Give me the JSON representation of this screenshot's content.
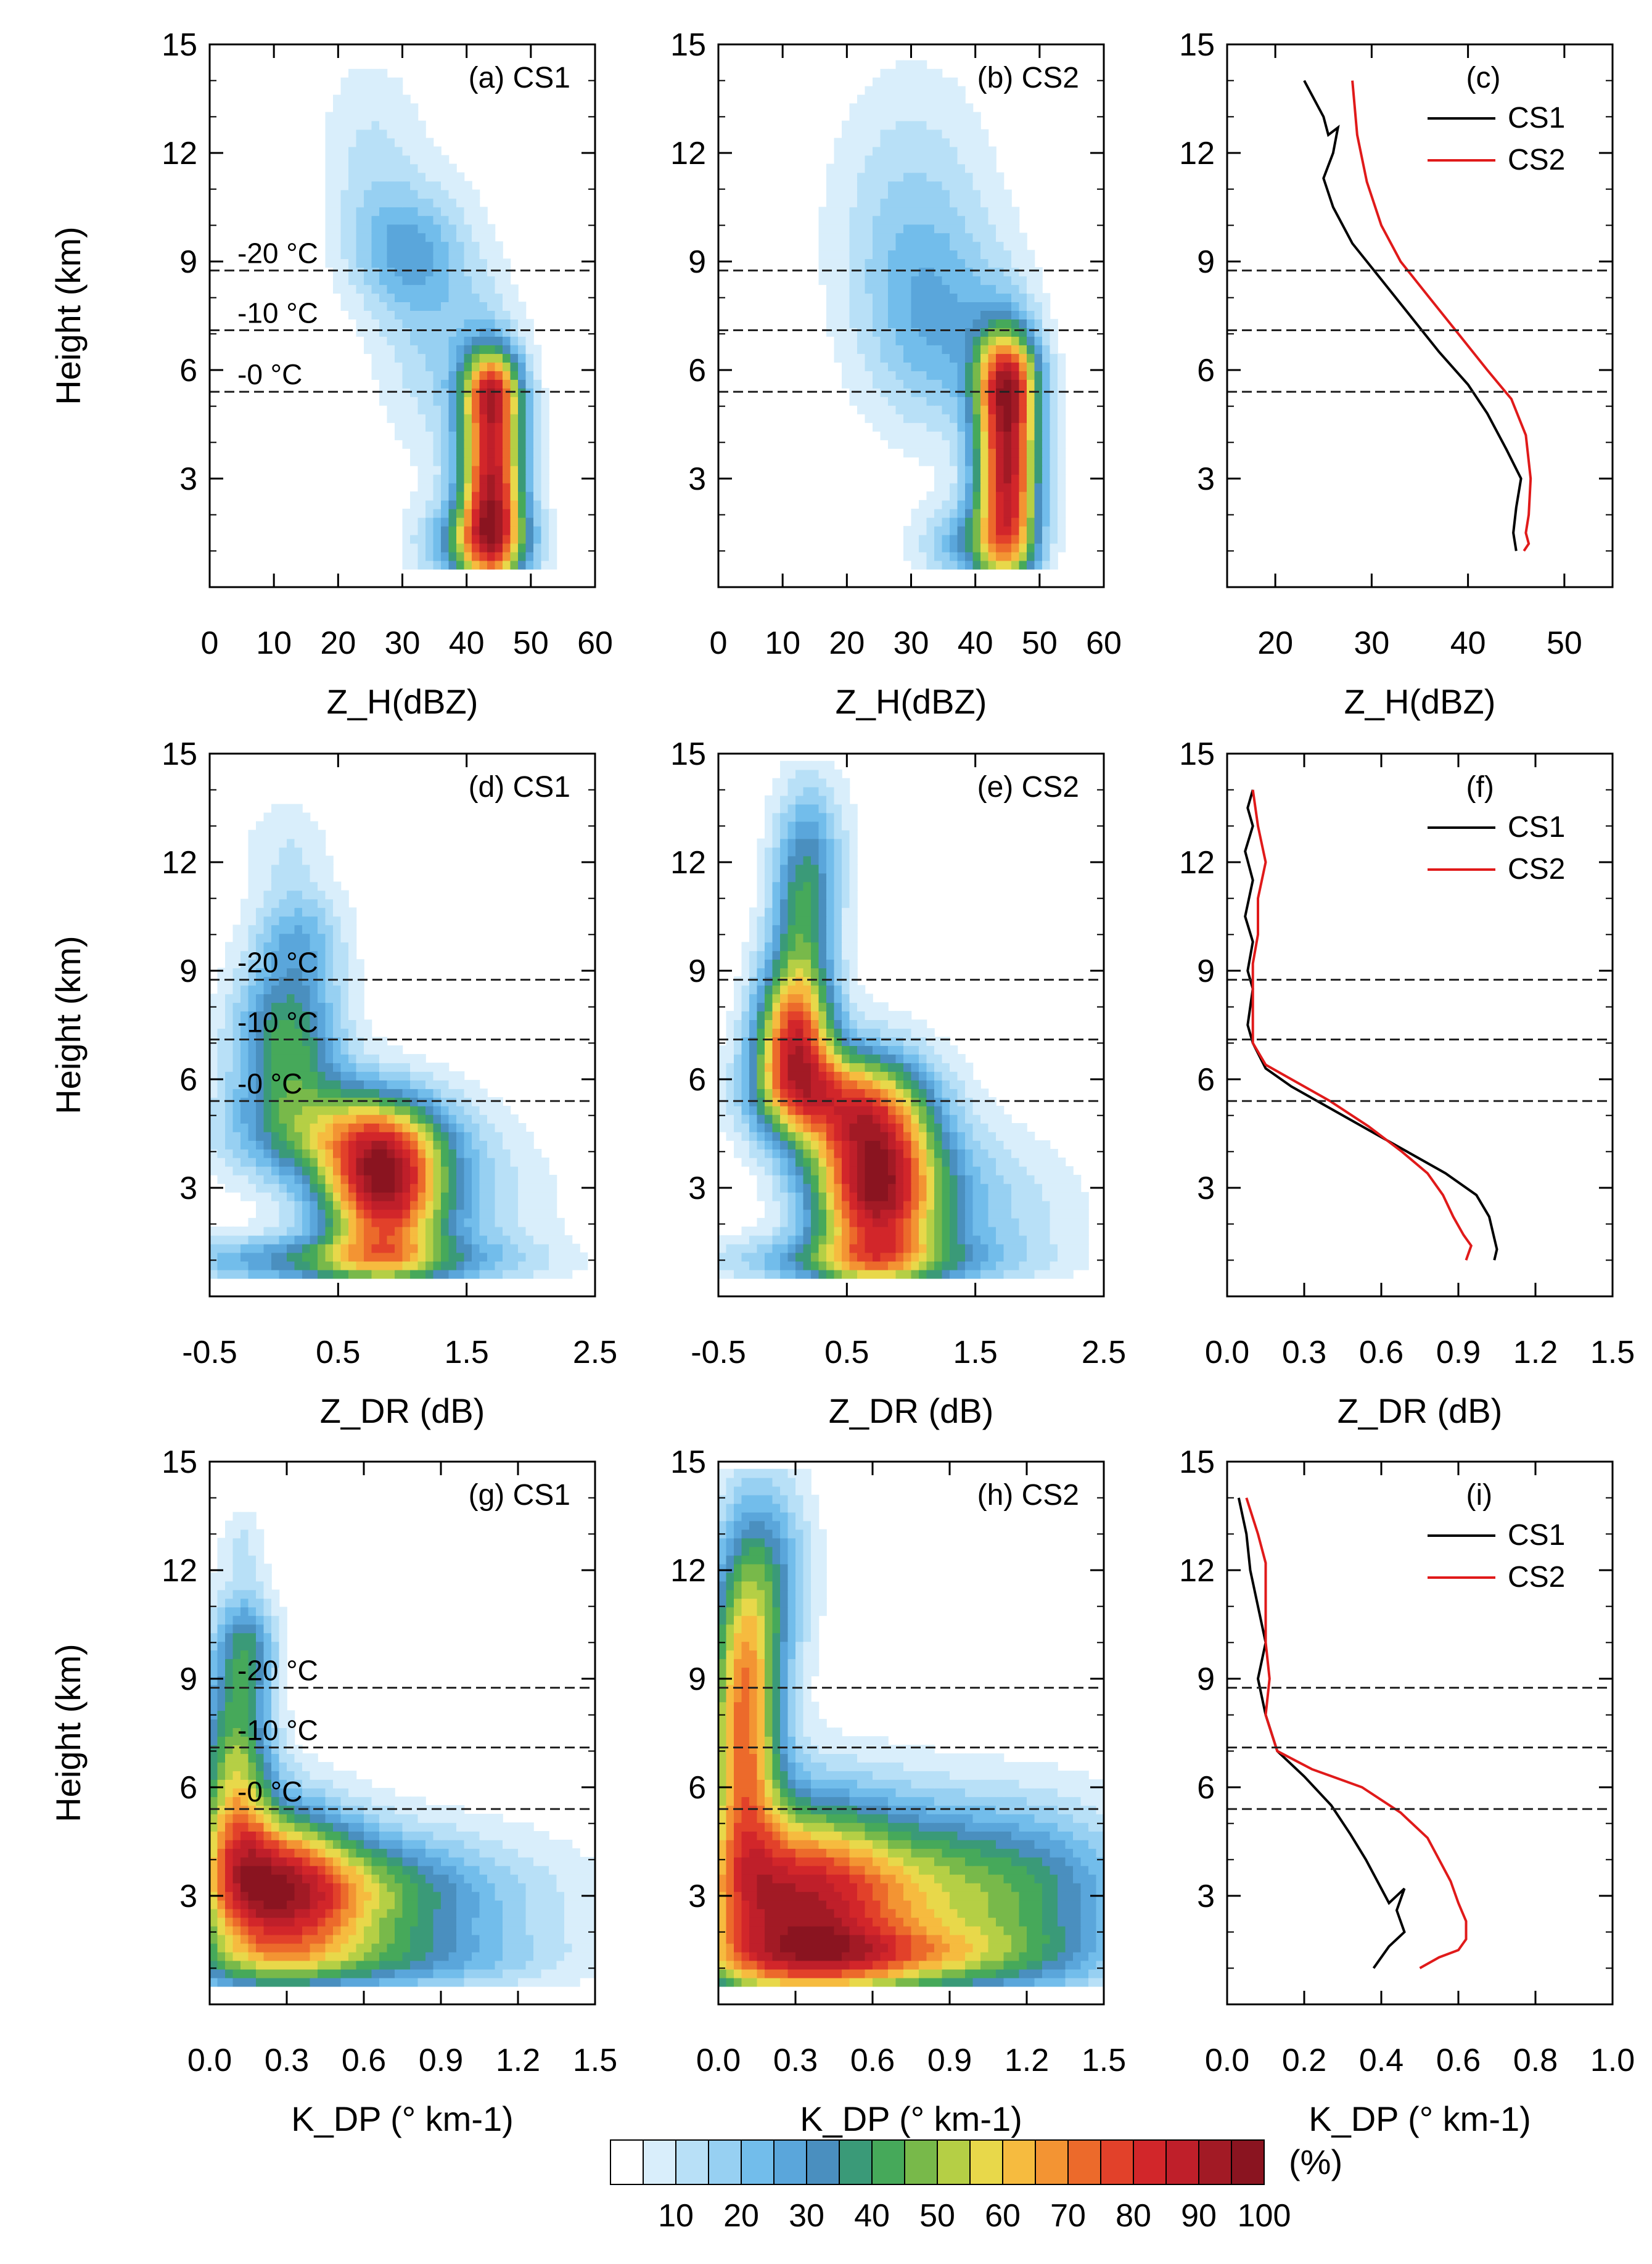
{
  "figure": {
    "colorbar": {
      "colors": [
        "#ffffff",
        "#d9eefb",
        "#b8e0f7",
        "#97d0f2",
        "#72bdeb",
        "#5aa6db",
        "#4a8fbf",
        "#3a9a78",
        "#46a95a",
        "#78b94a",
        "#b5cf45",
        "#e8d84a",
        "#f6bb3f",
        "#f39433",
        "#ec6a2b",
        "#e2412a",
        "#d2262a",
        "#bf1f2a",
        "#a21a25",
        "#8a1420"
      ],
      "labels": [
        "10",
        "20",
        "30",
        "40",
        "50",
        "60",
        "70",
        "80",
        "90",
        "100"
      ],
      "unit": "(%)"
    },
    "isotherm_labels": [
      "-20 °C",
      "-10 °C",
      "-0 °C"
    ]
  },
  "chart_data": [
    {
      "id": "a",
      "type": "heatmap",
      "panel_label": "(a)",
      "case": "CS1",
      "xlabel": "Z_H(dBZ)",
      "ylabel": "Height (km)",
      "xlim": [
        0,
        60
      ],
      "ylim": [
        0,
        15
      ],
      "xticks": [
        "0",
        "10",
        "20",
        "30",
        "40",
        "50",
        "60"
      ],
      "yticks": [
        "3",
        "6",
        "9",
        "12",
        "15"
      ],
      "isotherm_heights_km": [
        8.75,
        7.1,
        5.4
      ],
      "frequency_peak": {
        "x": 44,
        "y_range_km": [
          1,
          5
        ],
        "max_percent": 90
      }
    },
    {
      "id": "b",
      "type": "heatmap",
      "panel_label": "(b)",
      "case": "CS2",
      "xlabel": "Z_H(dBZ)",
      "ylabel": "",
      "xlim": [
        0,
        60
      ],
      "ylim": [
        0,
        15
      ],
      "xticks": [
        "0",
        "10",
        "20",
        "30",
        "40",
        "50",
        "60"
      ],
      "yticks": [
        "3",
        "6",
        "9",
        "12",
        "15"
      ],
      "isotherm_heights_km": [
        8.75,
        7.1,
        5.4
      ],
      "frequency_peak": {
        "x": 45,
        "y_range_km": [
          1,
          5
        ],
        "max_percent": 90
      }
    },
    {
      "id": "c",
      "type": "line",
      "panel_label": "(c)",
      "xlabel": "Z_H(dBZ)",
      "ylabel": "",
      "xlim": [
        15,
        55
      ],
      "ylim": [
        0,
        15
      ],
      "xticks": [
        "20",
        "30",
        "40",
        "50"
      ],
      "yticks": [
        "3",
        "6",
        "9",
        "12",
        "15"
      ],
      "isotherm_heights_km": [
        8.75,
        7.1,
        5.4
      ],
      "series": [
        {
          "name": "CS1",
          "color": "#000000",
          "points": [
            [
              23,
              14
            ],
            [
              25,
              13
            ],
            [
              25.5,
              12.5
            ],
            [
              26.5,
              12.7
            ],
            [
              26,
              12
            ],
            [
              25,
              11.3
            ],
            [
              26,
              10.5
            ],
            [
              28,
              9.5
            ],
            [
              31,
              8.5
            ],
            [
              34,
              7.5
            ],
            [
              37,
              6.5
            ],
            [
              40,
              5.6
            ],
            [
              42,
              4.8
            ],
            [
              44,
              3.8
            ],
            [
              45.5,
              3
            ],
            [
              45,
              2.2
            ],
            [
              44.7,
              1.5
            ],
            [
              45,
              1
            ]
          ]
        },
        {
          "name": "CS2",
          "color": "#e01a1a",
          "points": [
            [
              28,
              14
            ],
            [
              28.5,
              12.5
            ],
            [
              29.5,
              11.2
            ],
            [
              31,
              10
            ],
            [
              33,
              9
            ],
            [
              36,
              8
            ],
            [
              39,
              7
            ],
            [
              42,
              6
            ],
            [
              44.5,
              5.2
            ],
            [
              46,
              4.2
            ],
            [
              46.5,
              3
            ],
            [
              46.3,
              2
            ],
            [
              46,
              1.5
            ],
            [
              46.3,
              1.2
            ],
            [
              45.8,
              1
            ]
          ]
        }
      ]
    },
    {
      "id": "d",
      "type": "heatmap",
      "panel_label": "(d)",
      "case": "CS1",
      "xlabel": "Z_DR (dB)",
      "ylabel": "Height (km)",
      "xlim": [
        -0.5,
        2.5
      ],
      "ylim": [
        0,
        15
      ],
      "xticks": [
        "-0.5",
        "0.5",
        "1.5",
        "2.5"
      ],
      "yticks": [
        "3",
        "6",
        "9",
        "12",
        "15"
      ],
      "isotherm_heights_km": [
        8.75,
        7.1,
        5.4
      ],
      "frequency_peak": {
        "x": 0.85,
        "y_range_km": [
          1.5,
          4.5
        ],
        "max_percent": 90
      }
    },
    {
      "id": "e",
      "type": "heatmap",
      "panel_label": "(e)",
      "case": "CS2",
      "xlabel": "Z_DR (dB)",
      "ylabel": "",
      "xlim": [
        -0.5,
        2.5
      ],
      "ylim": [
        0,
        15
      ],
      "xticks": [
        "-0.5",
        "0.5",
        "1.5",
        "2.5"
      ],
      "yticks": [
        "3",
        "6",
        "9",
        "12",
        "15"
      ],
      "isotherm_heights_km": [
        8.75,
        7.1,
        5.4
      ],
      "frequency_peak": {
        "x": 0.72,
        "y_range_km": [
          2,
          4.5
        ],
        "max_percent": 90
      }
    },
    {
      "id": "f",
      "type": "line",
      "panel_label": "(f)",
      "xlabel": "Z_DR (dB)",
      "ylabel": "",
      "xlim": [
        0,
        1.5
      ],
      "ylim": [
        0,
        15
      ],
      "xticks": [
        "0.0",
        "0.3",
        "0.6",
        "0.9",
        "1.2",
        "1.5"
      ],
      "yticks": [
        "3",
        "6",
        "9",
        "12",
        "15"
      ],
      "isotherm_heights_km": [
        8.75,
        7.1,
        5.4
      ],
      "series": [
        {
          "name": "CS1",
          "color": "#000000",
          "points": [
            [
              0.1,
              14
            ],
            [
              0.08,
              13.5
            ],
            [
              0.1,
              13
            ],
            [
              0.07,
              12.3
            ],
            [
              0.1,
              11.5
            ],
            [
              0.07,
              10.5
            ],
            [
              0.1,
              9.8
            ],
            [
              0.08,
              9
            ],
            [
              0.1,
              8.5
            ],
            [
              0.08,
              7.5
            ],
            [
              0.1,
              7
            ],
            [
              0.15,
              6.3
            ],
            [
              0.25,
              5.8
            ],
            [
              0.4,
              5.2
            ],
            [
              0.55,
              4.6
            ],
            [
              0.7,
              4
            ],
            [
              0.85,
              3.4
            ],
            [
              0.97,
              2.8
            ],
            [
              1.02,
              2.2
            ],
            [
              1.04,
              1.6
            ],
            [
              1.05,
              1.3
            ],
            [
              1.04,
              1
            ]
          ]
        },
        {
          "name": "CS2",
          "color": "#e01a1a",
          "points": [
            [
              0.1,
              14
            ],
            [
              0.12,
              13
            ],
            [
              0.15,
              12
            ],
            [
              0.12,
              11
            ],
            [
              0.12,
              10
            ],
            [
              0.1,
              9.2
            ],
            [
              0.1,
              8
            ],
            [
              0.1,
              7
            ],
            [
              0.15,
              6.4
            ],
            [
              0.25,
              6
            ],
            [
              0.4,
              5.4
            ],
            [
              0.55,
              4.7
            ],
            [
              0.68,
              4
            ],
            [
              0.78,
              3.4
            ],
            [
              0.84,
              2.8
            ],
            [
              0.88,
              2.2
            ],
            [
              0.92,
              1.7
            ],
            [
              0.95,
              1.4
            ],
            [
              0.93,
              1
            ]
          ]
        }
      ]
    },
    {
      "id": "g",
      "type": "heatmap",
      "panel_label": "(g)",
      "case": "CS1",
      "xlabel": "K_DP (° km-1)",
      "ylabel": "Height (km)",
      "xlim": [
        0,
        1.5
      ],
      "ylim": [
        0,
        15
      ],
      "xticks": [
        "0.0",
        "0.3",
        "0.6",
        "0.9",
        "1.2",
        "1.5"
      ],
      "yticks": [
        "3",
        "6",
        "9",
        "12",
        "15"
      ],
      "isotherm_heights_km": [
        8.75,
        7.1,
        5.4
      ],
      "frequency_peak": {
        "x": 0.25,
        "y_range_km": [
          2,
          4.5
        ],
        "max_percent": 90
      }
    },
    {
      "id": "h",
      "type": "heatmap",
      "panel_label": "(h)",
      "case": "CS2",
      "xlabel": "K_DP (° km-1)",
      "ylabel": "",
      "xlim": [
        0,
        1.5
      ],
      "ylim": [
        0,
        15
      ],
      "xticks": [
        "0.0",
        "0.3",
        "0.6",
        "0.9",
        "1.2",
        "1.5"
      ],
      "yticks": [
        "3",
        "6",
        "9",
        "12",
        "15"
      ],
      "isotherm_heights_km": [
        8.75,
        7.1,
        5.4
      ],
      "frequency_peak": {
        "x": 0.3,
        "y_range_km": [
          1.5,
          5
        ],
        "max_percent": 90
      }
    },
    {
      "id": "i",
      "type": "line",
      "panel_label": "(i)",
      "xlabel": "K_DP (° km-1)",
      "ylabel": "",
      "xlim": [
        0,
        1
      ],
      "ylim": [
        0,
        15
      ],
      "xticks": [
        "0.0",
        "0.2",
        "0.4",
        "0.6",
        "0.8",
        "1.0"
      ],
      "yticks": [
        "3",
        "6",
        "9",
        "12",
        "15"
      ],
      "isotherm_heights_km": [
        8.75,
        7.1,
        5.4
      ],
      "series": [
        {
          "name": "CS1",
          "color": "#000000",
          "points": [
            [
              0.03,
              14
            ],
            [
              0.05,
              13
            ],
            [
              0.06,
              12
            ],
            [
              0.08,
              11
            ],
            [
              0.1,
              10
            ],
            [
              0.08,
              9
            ],
            [
              0.1,
              8
            ],
            [
              0.13,
              7
            ],
            [
              0.2,
              6.3
            ],
            [
              0.27,
              5.5
            ],
            [
              0.32,
              4.7
            ],
            [
              0.36,
              4
            ],
            [
              0.39,
              3.4
            ],
            [
              0.42,
              2.8
            ],
            [
              0.46,
              3.2
            ],
            [
              0.44,
              2.6
            ],
            [
              0.46,
              2
            ],
            [
              0.42,
              1.6
            ],
            [
              0.4,
              1.3
            ],
            [
              0.38,
              1
            ]
          ]
        },
        {
          "name": "CS2",
          "color": "#e01a1a",
          "points": [
            [
              0.05,
              14
            ],
            [
              0.08,
              13
            ],
            [
              0.1,
              12.2
            ],
            [
              0.1,
              11
            ],
            [
              0.1,
              10
            ],
            [
              0.11,
              9
            ],
            [
              0.1,
              8
            ],
            [
              0.13,
              7
            ],
            [
              0.22,
              6.5
            ],
            [
              0.35,
              6
            ],
            [
              0.45,
              5.3
            ],
            [
              0.52,
              4.6
            ],
            [
              0.55,
              4
            ],
            [
              0.58,
              3.4
            ],
            [
              0.6,
              2.8
            ],
            [
              0.62,
              2.3
            ],
            [
              0.62,
              1.8
            ],
            [
              0.6,
              1.5
            ],
            [
              0.55,
              1.3
            ],
            [
              0.5,
              1
            ]
          ]
        }
      ]
    }
  ]
}
